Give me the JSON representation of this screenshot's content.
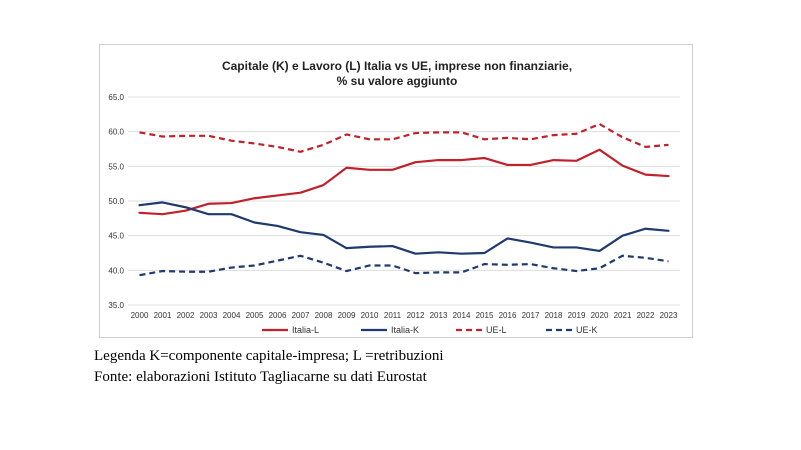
{
  "chart_data": {
    "type": "line",
    "title": "Capitale (K) e Lavoro (L) Italia vs UE, imprese non finanziarie,",
    "subtitle": "% su valore aggiunto",
    "xlabel": "",
    "ylabel": "",
    "ylim": [
      35.0,
      65.0
    ],
    "yticks": [
      "35.0",
      "40.0",
      "45.0",
      "50.0",
      "55.0",
      "60.0",
      "65.0"
    ],
    "grid": true,
    "legend_position": "bottom",
    "x": [
      "2000",
      "2001",
      "2002",
      "2003",
      "2004",
      "2005",
      "2006",
      "2007",
      "2008",
      "2009",
      "2010",
      "2011",
      "2012",
      "2013",
      "2014",
      "2015",
      "2016",
      "2017",
      "2018",
      "2019",
      "2020",
      "2021",
      "2022",
      "2023"
    ],
    "series": [
      {
        "name": "Italia-L",
        "color": "#c0212b",
        "dash": "solid",
        "values": [
          48.3,
          48.1,
          48.6,
          49.6,
          49.7,
          50.4,
          50.8,
          51.2,
          52.3,
          54.8,
          54.5,
          54.5,
          55.6,
          55.9,
          55.9,
          56.2,
          55.2,
          55.2,
          55.9,
          55.8,
          57.4,
          55.1,
          53.8,
          53.6
        ]
      },
      {
        "name": "Italia-K",
        "color": "#1f3a6e",
        "dash": "solid",
        "values": [
          49.4,
          49.8,
          49.1,
          48.1,
          48.1,
          46.9,
          46.4,
          45.5,
          45.1,
          43.2,
          43.4,
          43.5,
          42.4,
          42.6,
          42.4,
          42.5,
          44.6,
          44.0,
          43.3,
          43.3,
          42.8,
          45.0,
          46.0,
          45.7
        ]
      },
      {
        "name": "UE-L",
        "color": "#c0212b",
        "dash": "dashed",
        "values": [
          59.9,
          59.3,
          59.4,
          59.4,
          58.7,
          58.3,
          57.8,
          57.1,
          58.1,
          59.6,
          58.9,
          58.9,
          59.8,
          59.9,
          59.9,
          58.9,
          59.1,
          58.9,
          59.5,
          59.7,
          61.1,
          59.2,
          57.8,
          58.1
        ]
      },
      {
        "name": "UE-K",
        "color": "#1f3a6e",
        "dash": "dashed",
        "values": [
          39.3,
          39.9,
          39.8,
          39.8,
          40.4,
          40.7,
          41.4,
          42.1,
          41.1,
          39.9,
          40.7,
          40.7,
          39.6,
          39.7,
          39.7,
          40.9,
          40.8,
          40.9,
          40.3,
          39.9,
          40.3,
          42.1,
          41.8,
          41.3
        ]
      }
    ]
  },
  "caption": {
    "line1": "Legenda K=componente capitale-impresa; L =retribuzioni",
    "line2": "Fonte: elaborazioni Istituto Tagliacarne su dati Eurostat"
  }
}
